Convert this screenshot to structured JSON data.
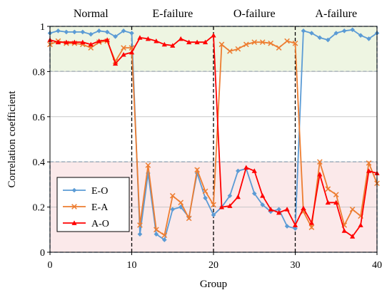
{
  "chart_data": {
    "type": "line",
    "xlabel": "Group",
    "ylabel": "Correlation coefficient",
    "xlim": [
      0,
      40
    ],
    "ylim": [
      0,
      1
    ],
    "xticks": [
      "0",
      "10",
      "20",
      "30",
      "40"
    ],
    "yticks": [
      "0",
      "0.2",
      "0.4",
      "0.6",
      "0.8",
      "1"
    ],
    "grid": "horizontal",
    "legend_position": "bottom-left",
    "sections": [
      "Normal",
      "E-failure",
      "O-failure",
      "A-failure"
    ],
    "section_dividers": [
      10,
      20,
      30
    ],
    "bands": [
      {
        "from": 0.8,
        "to": 1.0,
        "fill": "#eef5e2"
      },
      {
        "from": 0.0,
        "to": 0.4,
        "fill": "#fbe9ea"
      }
    ],
    "x": [
      0,
      1,
      2,
      3,
      4,
      5,
      6,
      7,
      8,
      9,
      10,
      11,
      12,
      13,
      14,
      15,
      16,
      17,
      18,
      19,
      20,
      21,
      22,
      23,
      24,
      25,
      26,
      27,
      28,
      29,
      30,
      31,
      32,
      33,
      34,
      35,
      36,
      37,
      38,
      39,
      40
    ],
    "series": [
      {
        "name": "E-O",
        "color": "#5b9bd5",
        "marker": "diamond",
        "values": [
          0.97,
          0.98,
          0.975,
          0.975,
          0.975,
          0.965,
          0.98,
          0.975,
          0.955,
          0.98,
          0.97,
          0.08,
          0.35,
          0.08,
          0.055,
          0.19,
          0.2,
          0.155,
          0.35,
          0.24,
          0.165,
          0.2,
          0.25,
          0.36,
          0.37,
          0.26,
          0.21,
          0.18,
          0.19,
          0.115,
          0.105,
          0.98,
          0.97,
          0.95,
          0.94,
          0.97,
          0.98,
          0.985,
          0.96,
          0.945,
          0.97
        ]
      },
      {
        "name": "E-A",
        "color": "#ed7d31",
        "marker": "x",
        "values": [
          0.92,
          0.935,
          0.925,
          0.925,
          0.92,
          0.905,
          0.93,
          0.935,
          0.845,
          0.905,
          0.905,
          0.12,
          0.385,
          0.1,
          0.075,
          0.25,
          0.22,
          0.15,
          0.365,
          0.27,
          0.21,
          0.92,
          0.89,
          0.9,
          0.92,
          0.93,
          0.93,
          0.925,
          0.905,
          0.935,
          0.925,
          0.18,
          0.11,
          0.4,
          0.28,
          0.255,
          0.12,
          0.19,
          0.16,
          0.395,
          0.305
        ]
      },
      {
        "name": "A-O",
        "color": "#ff0000",
        "marker": "triangle",
        "values": [
          0.94,
          0.93,
          0.93,
          0.93,
          0.93,
          0.92,
          0.935,
          0.94,
          0.835,
          0.875,
          0.885,
          0.95,
          0.945,
          0.935,
          0.92,
          0.915,
          0.945,
          0.93,
          0.93,
          0.93,
          0.96,
          0.2,
          0.205,
          0.245,
          0.375,
          0.36,
          0.25,
          0.19,
          0.175,
          0.19,
          0.12,
          0.195,
          0.13,
          0.345,
          0.22,
          0.22,
          0.095,
          0.07,
          0.12,
          0.36,
          0.35
        ]
      }
    ]
  }
}
